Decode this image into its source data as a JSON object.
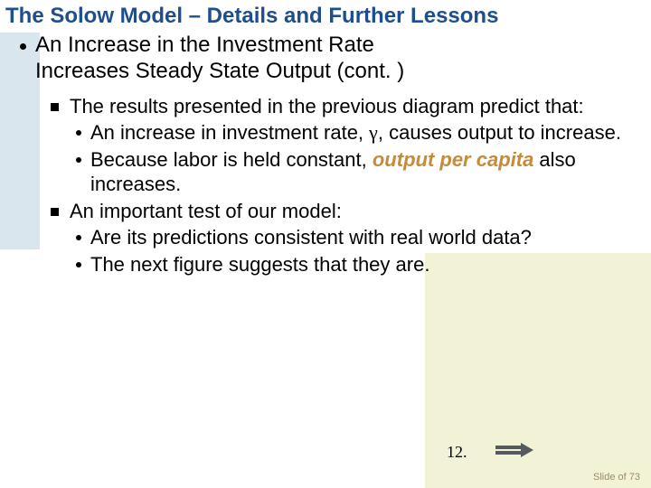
{
  "title": "The Solow Model – Details and Further Lessons",
  "mainBullet": {
    "line1": "An Increase in the Investment Rate",
    "line2": "Increases Steady State Output (cont. )"
  },
  "list": {
    "sq1": "The results presented in the previous diagram predict that:",
    "d1a": "An increase in investment rate, ",
    "d1_gamma": "γ",
    "d1b": ", causes output to increase.",
    "d2a": "Because labor is held constant, ",
    "d2_emph": "output per capita",
    "d2b": " also increases.",
    "sq2": "An important test of our model:",
    "d3": "Are its predictions consistent with real world data?",
    "d4": "The next figure suggests that they are."
  },
  "pageNumber": "12.",
  "slideCounter": "Slide  of 73",
  "colors": {
    "title": "#1f4e8c",
    "emphasis": "#c58a3a",
    "bgLeft": "#d9e6ee",
    "bgRight": "#f2f2d6",
    "arrow": "#555a5e",
    "slideCounter": "#9a8c6a"
  }
}
